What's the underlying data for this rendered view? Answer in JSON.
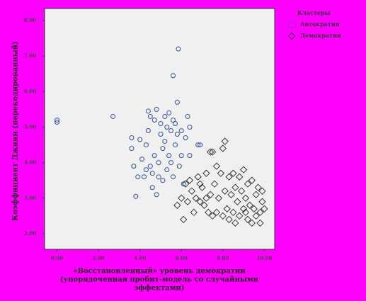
{
  "chart_data": {
    "type": "scatter",
    "x_label": [
      "«Восстановленный» уровень демократии",
      "(упорядоченная пробит-модель со случайными",
      "эффектами)"
    ],
    "y_label": "Коэффициент Джини (перекодированный)",
    "legend_title": "Кластеры",
    "legend": "right",
    "xlim": [
      -0.6,
      10.5
    ],
    "xticks": [
      {
        "value": 0,
        "label": "0.00"
      },
      {
        "value": 2,
        "label": "2.00"
      },
      {
        "value": 4,
        "label": "4.00"
      },
      {
        "value": 6,
        "label": "6.00"
      },
      {
        "value": 8,
        "label": "8.00"
      },
      {
        "value": 10,
        "label": "10.00"
      }
    ],
    "ylim": [
      1.56,
      8.34
    ],
    "yticks": [
      {
        "value": 2,
        "label": "2.00"
      },
      {
        "value": 3,
        "label": "3.00"
      },
      {
        "value": 4,
        "label": "4.00"
      },
      {
        "value": 5,
        "label": "5.00"
      },
      {
        "value": 6,
        "label": "6.00"
      },
      {
        "value": 7,
        "label": "7.00"
      },
      {
        "value": 8,
        "label": "8.00"
      }
    ],
    "series": [
      {
        "name": "Автократии",
        "color": "#2f4fa0",
        "marker": "circle",
        "x": [
          0,
          0,
          2.7,
          5.85,
          5.6,
          5.8,
          3.6,
          3.6,
          3.7,
          3.8,
          4,
          4.1,
          4.2,
          4.3,
          4.4,
          4.4,
          4.5,
          4.5,
          4.6,
          4.6,
          4.7,
          4.7,
          4.8,
          4.8,
          4.9,
          5.0,
          5.0,
          5.1,
          5.1,
          5.2,
          5.2,
          5.3,
          5.3,
          5.4,
          5.4,
          5.5,
          5.5,
          5.6,
          5.6,
          5.7,
          5.8,
          5.9,
          6.0,
          6.0,
          6.1,
          6.2,
          6.3,
          6.4,
          6.4,
          6.8,
          6.9,
          4.9,
          4.3,
          5.7,
          3.9
        ],
        "values": [
          5.2,
          5.14,
          5.3,
          7.2,
          6.45,
          5.7,
          4.7,
          4.4,
          3.9,
          3.05,
          4.65,
          4.1,
          3.6,
          4.5,
          4.9,
          5.45,
          5.3,
          3.9,
          3.7,
          3.3,
          4.2,
          5.2,
          5.5,
          3.1,
          4.0,
          4.8,
          5.1,
          3.5,
          4.4,
          5.3,
          4.6,
          3.8,
          5.0,
          4.2,
          5.4,
          4.0,
          4.9,
          3.6,
          5.2,
          4.5,
          4.8,
          3.9,
          4.9,
          4.2,
          3.4,
          4.7,
          5.3,
          5.0,
          4.2,
          4.5,
          4.5,
          3.6,
          3.8,
          5.1,
          3.6
        ]
      },
      {
        "name": "Демократии",
        "color": "#111111",
        "marker": "diamond",
        "x": [
          5.8,
          6.0,
          6.2,
          6.3,
          6.4,
          6.5,
          6.6,
          6.7,
          6.8,
          6.9,
          6.1,
          7.0,
          7.1,
          7.2,
          7.3,
          7.4,
          7.4,
          7.5,
          7.5,
          7.6,
          7.7,
          7.8,
          7.9,
          8.0,
          8.0,
          8.1,
          8.1,
          8.2,
          8.3,
          8.3,
          8.4,
          8.5,
          8.5,
          8.6,
          8.7,
          8.8,
          8.8,
          8.9,
          9.0,
          9.0,
          9.1,
          9.2,
          9.2,
          9.3,
          9.4,
          9.4,
          9.5,
          9.6,
          9.6,
          9.7,
          9.8,
          9.8,
          9.9,
          9.9,
          10.0,
          7.7,
          8.6,
          9.1,
          7.2,
          6.9
        ],
        "values": [
          2.8,
          3.0,
          3.4,
          2.9,
          3.5,
          3.2,
          2.6,
          3.0,
          3.6,
          2.9,
          2.4,
          3.3,
          2.8,
          3.7,
          2.6,
          3.1,
          4.3,
          4.3,
          2.5,
          3.4,
          2.6,
          3.0,
          3.7,
          2.5,
          4.4,
          3.2,
          4.6,
          2.7,
          3.6,
          2.4,
          3.1,
          3.7,
          2.6,
          3.3,
          2.9,
          3.6,
          2.5,
          3.2,
          2.7,
          3.8,
          3.0,
          2.4,
          3.4,
          2.8,
          3.5,
          2.3,
          2.7,
          3.1,
          2.5,
          3.3,
          2.6,
          2.3,
          2.9,
          3.2,
          2.7,
          3.9,
          2.3,
          2.6,
          3.0,
          3.4
        ]
      }
    ]
  }
}
